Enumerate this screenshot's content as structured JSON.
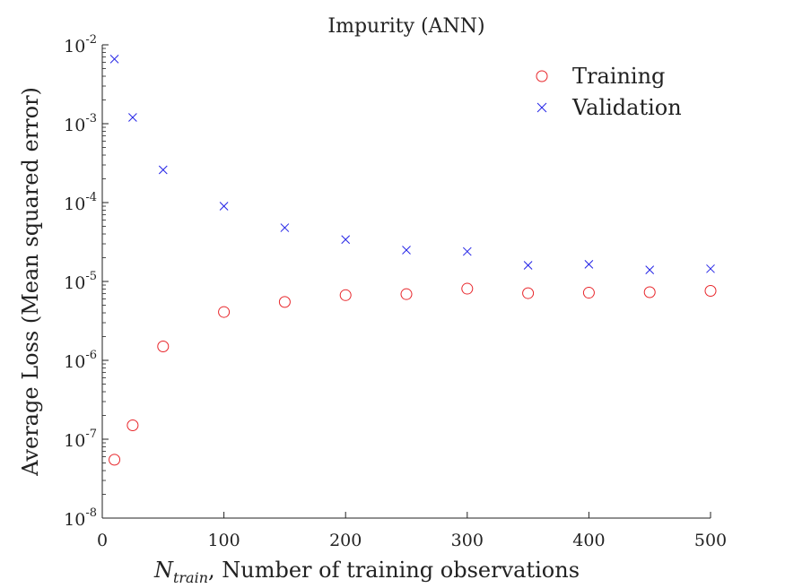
{
  "chart_data": {
    "type": "scatter",
    "title": "Impurity (ANN)",
    "xlabel_symbol": "N",
    "xlabel_subscript": "train",
    "xlabel_rest": ", Number of training observations",
    "ylabel": "Average Loss (Mean squared error)",
    "xlim": [
      0,
      500
    ],
    "ylim": [
      1e-08,
      0.01
    ],
    "yscale": "log",
    "x_ticks": [
      0,
      100,
      200,
      300,
      400,
      500
    ],
    "y_tick_base": "10",
    "y_tick_exponents": [
      "-8",
      "-7",
      "-6",
      "-5",
      "-4",
      "-3",
      "-2"
    ],
    "grid": false,
    "legend_position": "top-right",
    "series": [
      {
        "name": "Training",
        "marker": "circle",
        "color": "#e8262b",
        "x": [
          10,
          25,
          50,
          100,
          150,
          200,
          250,
          300,
          350,
          400,
          450,
          500
        ],
        "y": [
          5.5e-08,
          1.5e-07,
          1.5e-06,
          4.1e-06,
          5.5e-06,
          6.7e-06,
          6.9e-06,
          8.1e-06,
          7.1e-06,
          7.2e-06,
          7.3e-06,
          7.6e-06
        ]
      },
      {
        "name": "Validation",
        "marker": "x",
        "color": "#2424e6",
        "x": [
          10,
          25,
          50,
          100,
          150,
          200,
          250,
          300,
          350,
          400,
          450,
          500
        ],
        "y": [
          0.0066,
          0.0012,
          0.00026,
          9e-05,
          4.8e-05,
          3.4e-05,
          2.5e-05,
          2.4e-05,
          1.6e-05,
          1.65e-05,
          1.4e-05,
          1.45e-05
        ]
      }
    ]
  }
}
